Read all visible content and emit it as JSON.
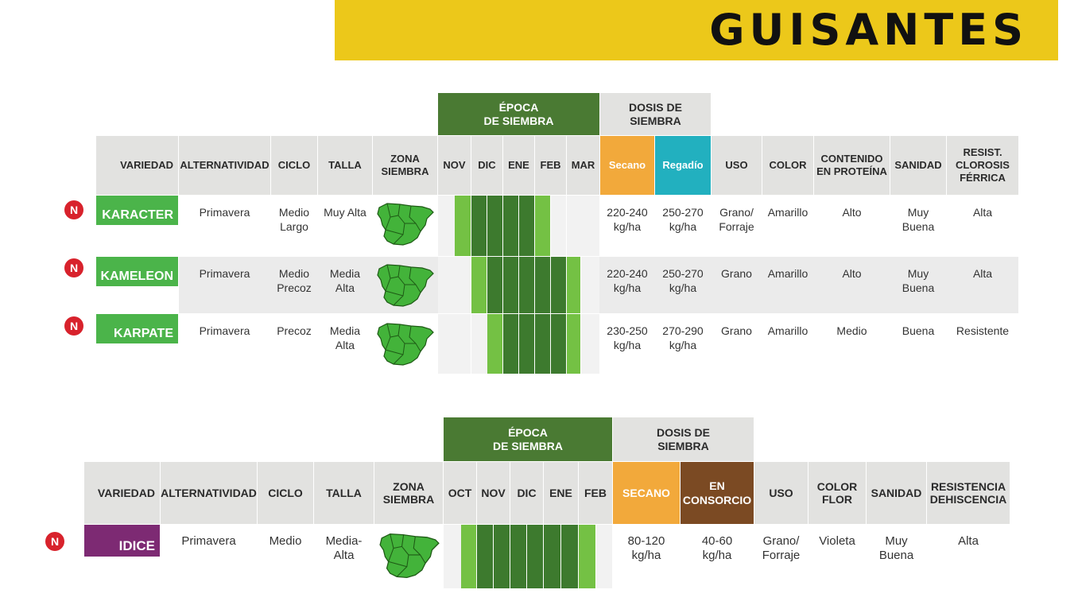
{
  "page_title": "GUISANTES",
  "table1": {
    "epoca_header": "ÉPOCA\nDE SIEMBRA",
    "dosis_header": "DOSIS DE\nSIEMBRA",
    "columns": {
      "variedad": "VARIEDAD",
      "alternatividad": "ALTERNATIVIDAD",
      "ciclo": "CICLO",
      "talla": "TALLA",
      "zona": "ZONA\nSIEMBRA",
      "months": [
        "NOV",
        "DIC",
        "ENE",
        "FEB",
        "MAR"
      ],
      "secano": "Secano",
      "regadio": "Regadío",
      "uso": "USO",
      "color": "COLOR",
      "proteina": "CONTENIDO\nEN PROTEÍNA",
      "sanidad": "SANIDAD",
      "clorosis": "RESIST.\nCLOROSIS\nFÉRRICA"
    },
    "rows": [
      {
        "badge": "N",
        "name": "KARACTER",
        "alternatividad": "Primavera",
        "ciclo": "Medio\nLargo",
        "talla": "Muy Alta",
        "secano": "220-240\nkg/ha",
        "regadio": "250-270\nkg/ha",
        "uso": "Grano/\nForraje",
        "color": "Amarillo",
        "proteina": "Alto",
        "sanidad": "Muy\nBuena",
        "clorosis": "Alta",
        "months": [
          "light-late",
          "dark",
          "dark",
          "light",
          "none"
        ]
      },
      {
        "badge": "N",
        "name": "KAMELEON",
        "alternatividad": "Primavera",
        "ciclo": "Medio\nPrecoz",
        "talla": "Media\nAlta",
        "secano": "220-240\nkg/ha",
        "regadio": "250-270\nkg/ha",
        "uso": "Grano",
        "color": "Amarillo",
        "proteina": "Alto",
        "sanidad": "Muy\nBuena",
        "clorosis": "Alta",
        "months": [
          "none",
          "light-dark",
          "dark",
          "dark",
          "dark-light"
        ]
      },
      {
        "badge": "N",
        "name": "KARPATE",
        "alternatividad": "Primavera",
        "ciclo": "Precoz",
        "talla": "Media\nAlta",
        "secano": "230-250\nkg/ha",
        "regadio": "270-290\nkg/ha",
        "uso": "Grano",
        "color": "Amarillo",
        "proteina": "Medio",
        "sanidad": "Buena",
        "clorosis": "Resistente",
        "months": [
          "none",
          "none-light",
          "dark",
          "dark",
          "dark-light"
        ]
      }
    ]
  },
  "table2": {
    "epoca_header": "ÉPOCA\nDE SIEMBRA",
    "dosis_header": "DOSIS DE\nSIEMBRA",
    "columns": {
      "variedad": "VARIEDAD",
      "alternatividad": "ALTERNATIVIDAD",
      "ciclo": "CICLO",
      "talla": "TALLA",
      "zona": "ZONA\nSIEMBRA",
      "months": [
        "OCT",
        "NOV",
        "DIC",
        "ENE",
        "FEB"
      ],
      "secano": "SECANO",
      "consorcio": "EN\nCONSORCIO",
      "uso": "USO",
      "color": "COLOR\nFLOR",
      "sanidad": "SANIDAD",
      "dehiscencia": "RESISTENCIA\nDEHISCENCIA"
    },
    "rows": [
      {
        "badge": "N",
        "name": "IDICE",
        "alternatividad": "Primavera",
        "ciclo": "Medio",
        "talla": "Media-\nAlta",
        "secano": "80-120\nkg/ha",
        "consorcio": "40-60\nkg/ha",
        "uso": "Grano/\nForraje",
        "color": "Violeta",
        "sanidad": "Muy\nBuena",
        "dehiscencia": "Alta"
      }
    ]
  },
  "colors": {
    "banner": "#ecc81a",
    "variety_green": "#4bb44a",
    "variety_purple": "#7d2a73",
    "month_dark": "#3d7a2e",
    "month_light": "#74c144",
    "badge_red": "#d8222c"
  }
}
